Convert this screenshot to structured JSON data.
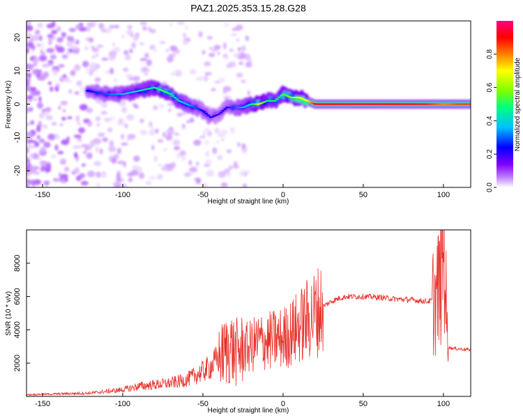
{
  "title": "PAZ1.2025.353.15.28.G28",
  "chart_data": [
    {
      "type": "heatmap",
      "xlabel": "Height of straight line (km)",
      "ylabel": "Frequency (Hz)",
      "xlim": [
        -160,
        117
      ],
      "ylim": [
        -25,
        25
      ],
      "xticks": [
        -150,
        -100,
        -50,
        0,
        50,
        100
      ],
      "yticks": [
        -20,
        -10,
        0,
        10,
        20
      ],
      "colorbar": {
        "label": "Normalized spectral amplitude",
        "range": [
          0,
          1
        ],
        "ticks": [
          "0.0",
          "0.2",
          "0.4",
          "0.6",
          "0.8"
        ],
        "colors": [
          "#ffffff",
          "#c080ff",
          "#8000ff",
          "#0000ff",
          "#00c0ff",
          "#00ff80",
          "#80ff00",
          "#ffff00",
          "#ff8000",
          "#ff0000",
          "#ff0080"
        ]
      },
      "ridge": {
        "x": [
          -122,
          -110,
          -100,
          -90,
          -80,
          -75,
          -70,
          -65,
          -60,
          -55,
          -50,
          -45,
          -40,
          -35,
          -30,
          -25,
          -20,
          -15,
          -10,
          -5,
          0,
          5,
          10,
          15,
          20,
          30,
          50,
          70,
          90,
          100,
          110,
          117
        ],
        "frequency": [
          4,
          3,
          3,
          4,
          5,
          4,
          3,
          1,
          0,
          -1,
          -2,
          -4,
          -3,
          -1,
          -1,
          -1,
          0,
          0,
          1,
          1,
          3,
          2,
          2,
          1,
          0,
          0,
          0,
          0,
          0,
          0,
          0,
          0
        ],
        "amplitude": [
          0.3,
          0.35,
          0.4,
          0.45,
          0.5,
          0.55,
          0.5,
          0.45,
          0.4,
          0.35,
          0.3,
          0.3,
          0.25,
          0.3,
          0.35,
          0.4,
          0.45,
          0.7,
          0.5,
          0.5,
          0.55,
          0.6,
          0.7,
          0.7,
          0.9,
          0.9,
          0.92,
          0.9,
          0.88,
          0.8,
          0.85,
          0.85
        ]
      }
    },
    {
      "type": "line",
      "xlabel": "Height of straight line (km)",
      "ylabel": "SNR (10 * v/v)",
      "xlim": [
        -160,
        117
      ],
      "ylim": [
        0,
        10000
      ],
      "xticks": [
        -150,
        -100,
        -50,
        0,
        50,
        100
      ],
      "yticks": [
        2000,
        4000,
        6000,
        8000
      ],
      "color": "#e8302a",
      "series": [
        {
          "name": "SNR",
          "x": [
            -160,
            -140,
            -120,
            -110,
            -100,
            -90,
            -80,
            -70,
            -60,
            -50,
            -45,
            -40,
            -36,
            -33,
            -30,
            -25,
            -20,
            -15,
            -10,
            -5,
            0,
            5,
            10,
            15,
            20,
            25,
            30,
            35,
            40,
            50,
            60,
            70,
            80,
            90,
            95,
            97,
            99,
            100,
            101,
            102,
            103,
            105,
            110,
            117
          ],
          "y": [
            100,
            150,
            200,
            300,
            400,
            600,
            700,
            800,
            1000,
            1500,
            1800,
            2300,
            2700,
            3000,
            2600,
            2800,
            3000,
            3300,
            3300,
            3400,
            3500,
            3800,
            4200,
            4600,
            5000,
            5400,
            5700,
            5900,
            6000,
            6000,
            5950,
            5850,
            5800,
            5700,
            5800,
            6500,
            7500,
            9000,
            8500,
            4000,
            3000,
            2900,
            2850,
            2800
          ]
        }
      ]
    }
  ]
}
